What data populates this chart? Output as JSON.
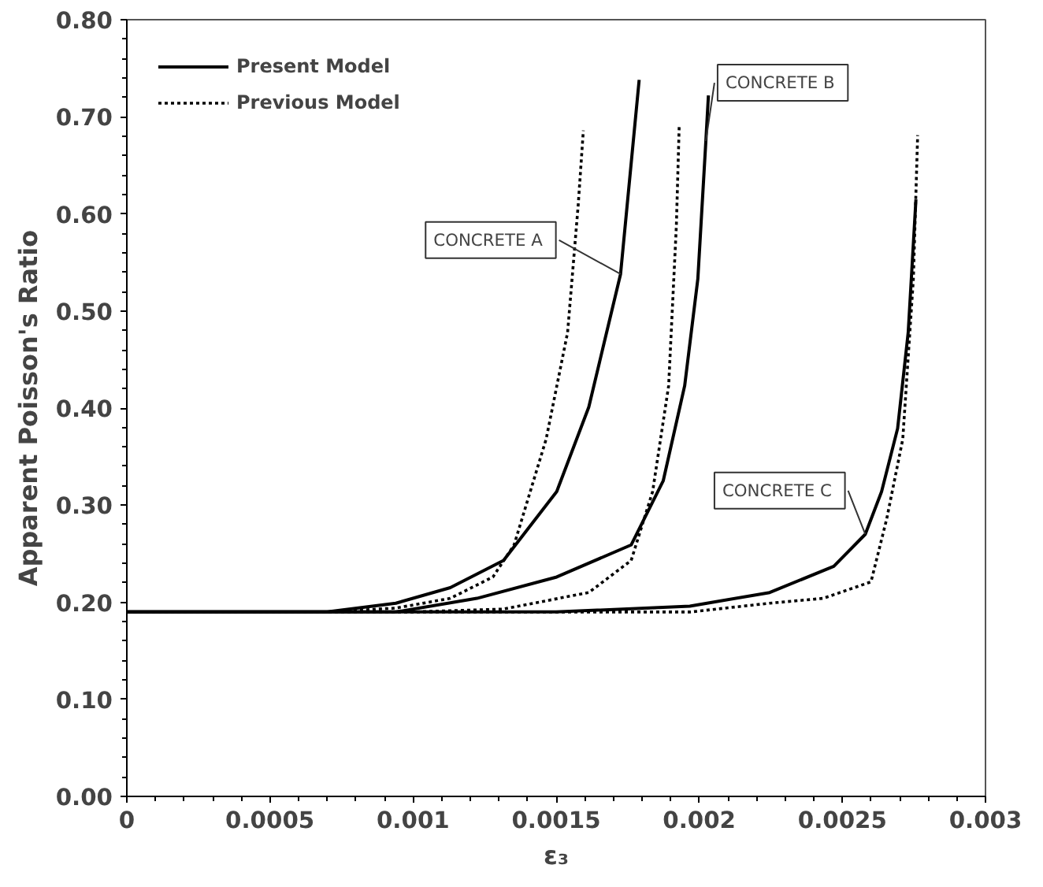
{
  "chart_data": {
    "type": "line",
    "xlabel": "ε₃",
    "ylabel": "Apparent Poisson's Ratio",
    "xlim": [
      0,
      0.003
    ],
    "ylim": [
      0,
      0.8
    ],
    "xticks": [
      0,
      0.0005,
      0.001,
      0.0015,
      0.002,
      0.0025,
      0.003
    ],
    "yticks": [
      {
        "value": 0,
        "label": "0.00"
      },
      {
        "value": 0.1,
        "label": "0.10"
      },
      {
        "value": 0.2,
        "label": "0.20"
      },
      {
        "value": 0.3,
        "label": "0.30"
      },
      {
        "value": 0.4,
        "label": "0.40"
      },
      {
        "value": 0.5,
        "label": "0.50"
      },
      {
        "value": 0.6,
        "label": "0.60"
      },
      {
        "value": 0.7,
        "label": "0.70"
      },
      {
        "value": 0.8,
        "label": "0.80"
      }
    ],
    "grid": false,
    "legend": "top left",
    "series": [
      {
        "name": "Present Model",
        "color": "#000000",
        "line_style": "solid",
        "x": [
          0,
          0.0007,
          0.00094,
          0.00113,
          0.001316,
          0.001502,
          0.001614,
          0.001725,
          0.00179
        ],
        "values": [
          0.19,
          0.19,
          0.199,
          0.215,
          0.243,
          0.314,
          0.401,
          0.538,
          0.738
        ]
      },
      {
        "name": "Previous Model",
        "color": "#000000",
        "line_style": "dotted",
        "x": [
          0,
          0.0007,
          0.00094,
          0.00113,
          0.001279,
          0.001353,
          0.001465,
          0.00154,
          0.001577,
          0.001595
        ],
        "values": [
          0.19,
          0.19,
          0.194,
          0.204,
          0.226,
          0.259,
          0.368,
          0.478,
          0.609,
          0.686
        ]
      },
      {
        "color": "#000000",
        "line_style": "solid",
        "x": [
          0,
          0.0008,
          0.00094,
          0.001223,
          0.001502,
          0.001762,
          0.001874,
          0.001949,
          0.001995,
          0.002023,
          0.002032
        ],
        "values": [
          0.19,
          0.19,
          0.19,
          0.204,
          0.226,
          0.259,
          0.325,
          0.423,
          0.533,
          0.675,
          0.722
        ]
      },
      {
        "color": "#000000",
        "line_style": "dotted",
        "x": [
          0,
          0.001,
          0.001316,
          0.001614,
          0.001762,
          0.001837,
          0.001893,
          0.00192,
          0.00193
        ],
        "values": [
          0.19,
          0.19,
          0.193,
          0.21,
          0.243,
          0.314,
          0.423,
          0.588,
          0.692
        ]
      },
      {
        "color": "#000000",
        "line_style": "solid",
        "x": [
          0,
          0.0015,
          0.001967,
          0.002246,
          0.00247,
          0.00258,
          0.002637,
          0.002693,
          0.00273,
          0.002757
        ],
        "values": [
          0.19,
          0.19,
          0.196,
          0.21,
          0.237,
          0.27,
          0.314,
          0.379,
          0.478,
          0.615
        ]
      },
      {
        "color": "#000000",
        "line_style": "dotted",
        "x": [
          0,
          0.00197,
          0.002246,
          0.002433,
          0.0026,
          0.002655,
          0.002711,
          0.002748,
          0.002763
        ],
        "values": [
          0.19,
          0.19,
          0.199,
          0.204,
          0.221,
          0.286,
          0.368,
          0.533,
          0.681
        ]
      }
    ],
    "annotations": [
      {
        "text": "CONCRETE  A",
        "x": 0.001725,
        "y": 0.538
      },
      {
        "text": "CONCRETE  B",
        "x": 0.002023,
        "y": 0.675
      },
      {
        "text": "CONCRETE  C",
        "x": 0.00258,
        "y": 0.27
      }
    ]
  }
}
